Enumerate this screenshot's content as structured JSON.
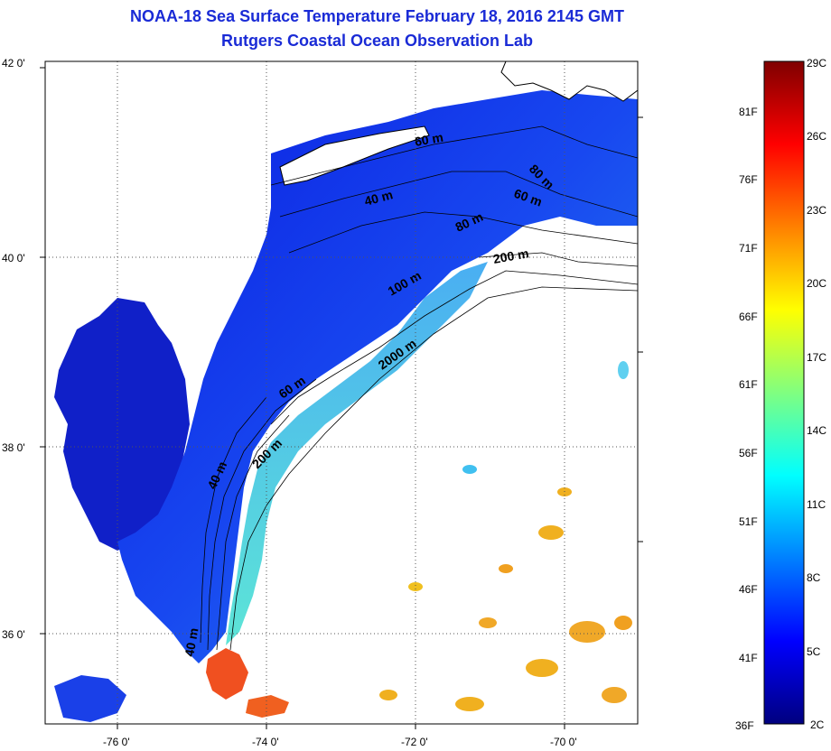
{
  "title": {
    "line1": "NOAA-18 Sea Surface Temperature February 18, 2016 2145 GMT",
    "line2": "Rutgers Coastal Ocean Observation Lab"
  },
  "map": {
    "lat_ticks": [
      "42 0'",
      "40 0'",
      "38 0'",
      "36 0'"
    ],
    "lon_ticks": [
      "-76 0'",
      "-74 0'",
      "-72 0'",
      "-70 0'"
    ],
    "contour_labels": [
      "40 m",
      "40 m",
      "60 m",
      "200 m",
      "2000 m",
      "100 m",
      "80 m",
      "200 m",
      "80 m",
      "60 m",
      "40 m",
      "60 m"
    ]
  },
  "colorbar": {
    "celsius_labels": [
      "29C",
      "26C",
      "23C",
      "20C",
      "17C",
      "14C",
      "11C",
      "8C",
      "5C",
      "2C"
    ],
    "fahrenheit_labels": [
      "81F",
      "76F",
      "71F",
      "66F",
      "61F",
      "56F",
      "51F",
      "46F",
      "41F",
      "36F"
    ],
    "colors": [
      "#00007f",
      "#0000ff",
      "#0080ff",
      "#00ffff",
      "#80ff80",
      "#ffff00",
      "#ff8000",
      "#ff0000",
      "#7f0000"
    ]
  },
  "colors": {
    "title": "#1a2bd6",
    "land": "#ffffff",
    "cloud": "#ffffff"
  }
}
